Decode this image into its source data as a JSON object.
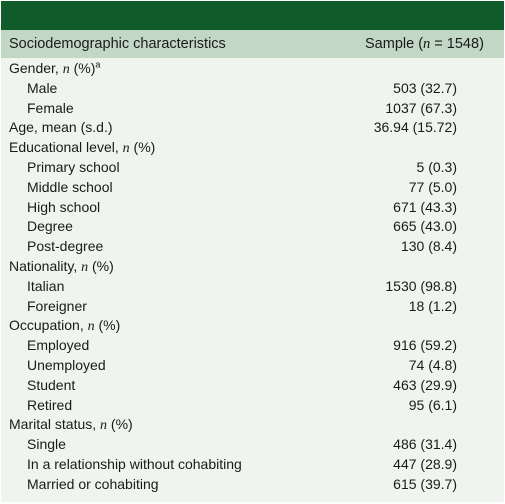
{
  "header": {
    "col1": "Sociodemographic characteristics",
    "col2_prefix": "Sample (",
    "col2_n": "n",
    "col2_suffix": " = 1548)"
  },
  "rows": [
    {
      "type": "cat",
      "label": "Gender, ",
      "n": "n",
      "rest": " (%)",
      "sup": "a",
      "value": ""
    },
    {
      "type": "sub",
      "label": "Male",
      "value": "503 (32.7)"
    },
    {
      "type": "sub",
      "label": "Female",
      "value": "1037 (67.3)"
    },
    {
      "type": "cat",
      "label": "Age, mean (s.d.)",
      "value": "36.94 (15.72)"
    },
    {
      "type": "cat",
      "label": "Educational level, ",
      "n": "n",
      "rest": " (%)",
      "value": ""
    },
    {
      "type": "sub",
      "label": "Primary school",
      "value": "5 (0.3)"
    },
    {
      "type": "sub",
      "label": "Middle school",
      "value": "77 (5.0)"
    },
    {
      "type": "sub",
      "label": "High school",
      "value": "671 (43.3)"
    },
    {
      "type": "sub",
      "label": "Degree",
      "value": "665 (43.0)"
    },
    {
      "type": "sub",
      "label": "Post-degree",
      "value": "130 (8.4)"
    },
    {
      "type": "cat",
      "label": "Nationality, ",
      "n": "n",
      "rest": " (%)",
      "value": ""
    },
    {
      "type": "sub",
      "label": "Italian",
      "value": "1530 (98.8)"
    },
    {
      "type": "sub",
      "label": "Foreigner",
      "value": "18 (1.2)"
    },
    {
      "type": "cat",
      "label": "Occupation, ",
      "n": "n",
      "rest": " (%)",
      "value": ""
    },
    {
      "type": "sub",
      "label": "Employed",
      "value": "916 (59.2)"
    },
    {
      "type": "sub",
      "label": "Unemployed",
      "value": "74 (4.8)"
    },
    {
      "type": "sub",
      "label": "Student",
      "value": "463 (29.9)"
    },
    {
      "type": "sub",
      "label": "Retired",
      "value": "95 (6.1)"
    },
    {
      "type": "cat",
      "label": "Marital status, ",
      "n": "n",
      "rest": " (%)",
      "value": ""
    },
    {
      "type": "sub",
      "label": "Single",
      "value": "486 (31.4)"
    },
    {
      "type": "sub",
      "label": "In a relationship without cohabiting",
      "value": "447 (28.9)"
    },
    {
      "type": "sub",
      "label": "Married or cohabiting",
      "value": "615 (39.7)"
    }
  ],
  "colors": {
    "top_bar": "#0f5c2a",
    "header_bg": "#c3d7c5",
    "body_bg": "#eff4ef"
  }
}
